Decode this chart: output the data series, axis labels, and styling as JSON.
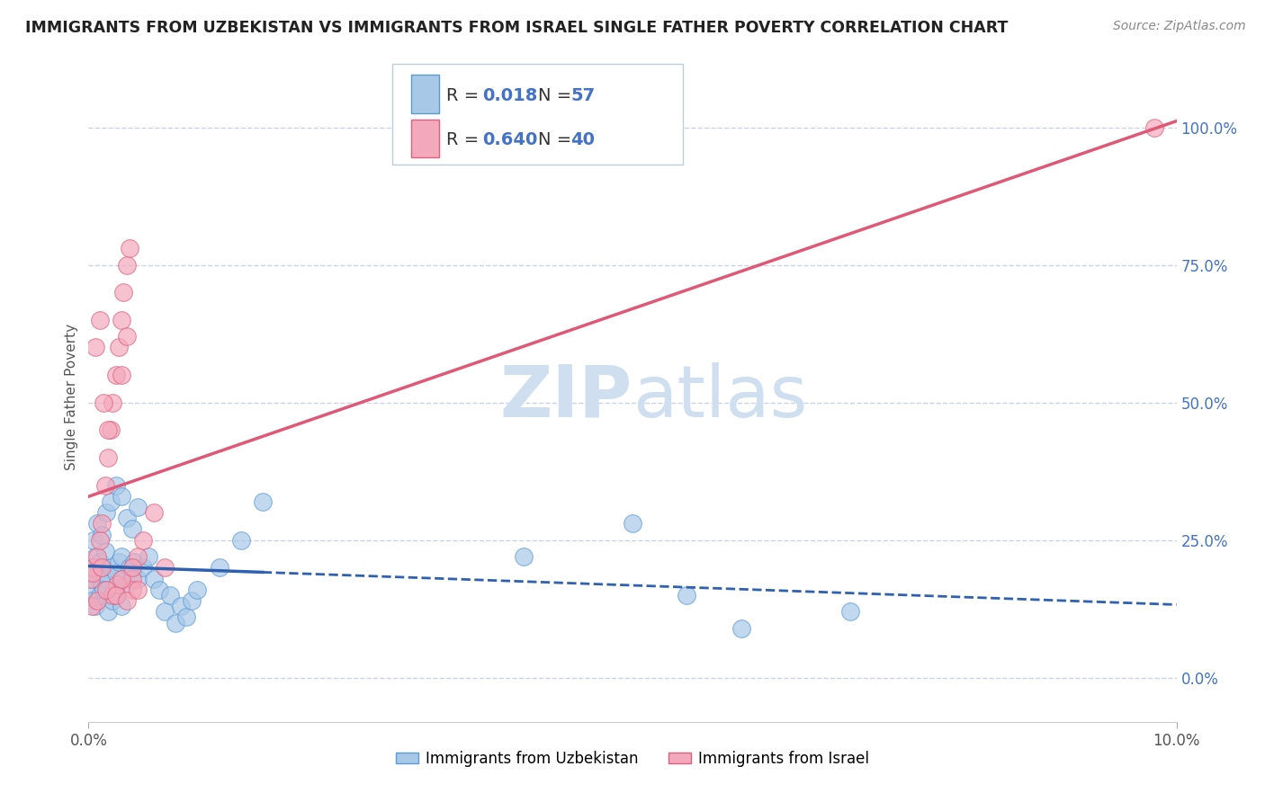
{
  "title": "IMMIGRANTS FROM UZBEKISTAN VS IMMIGRANTS FROM ISRAEL SINGLE FATHER POVERTY CORRELATION CHART",
  "source": "Source: ZipAtlas.com",
  "ylabel": "Single Father Poverty",
  "legend_label1": "Immigrants from Uzbekistan",
  "legend_label2": "Immigrants from Israel",
  "R1": 0.018,
  "N1": 57,
  "R2": 0.64,
  "N2": 40,
  "color1": "#a8c8e8",
  "color2": "#f4a8bc",
  "color1_edge": "#5b9bd5",
  "color2_edge": "#e06080",
  "regression_color1": "#3060b0",
  "regression_color2": "#e05878",
  "background_color": "#ffffff",
  "grid_color": "#c8d4e4",
  "watermark_color": "#d0dff0",
  "xlim": [
    0.0,
    0.1
  ],
  "ylim": [
    -0.08,
    1.1
  ],
  "uzbekistan_x": [
    0.0002,
    0.0003,
    0.0005,
    0.0006,
    0.0008,
    0.001,
    0.0012,
    0.0015,
    0.0018,
    0.002,
    0.0022,
    0.0025,
    0.0028,
    0.003,
    0.0032,
    0.0035,
    0.0038,
    0.004,
    0.0042,
    0.0045,
    0.0003,
    0.0006,
    0.001,
    0.0014,
    0.0018,
    0.0022,
    0.0026,
    0.003,
    0.0005,
    0.0008,
    0.0012,
    0.0016,
    0.002,
    0.0025,
    0.003,
    0.0035,
    0.004,
    0.0045,
    0.005,
    0.0055,
    0.006,
    0.0065,
    0.007,
    0.0075,
    0.008,
    0.0085,
    0.009,
    0.0095,
    0.01,
    0.012,
    0.014,
    0.016,
    0.04,
    0.05,
    0.055,
    0.06,
    0.07
  ],
  "uzbekistan_y": [
    0.18,
    0.16,
    0.2,
    0.22,
    0.19,
    0.21,
    0.17,
    0.23,
    0.18,
    0.2,
    0.16,
    0.19,
    0.21,
    0.22,
    0.18,
    0.17,
    0.2,
    0.19,
    0.21,
    0.18,
    0.14,
    0.13,
    0.15,
    0.16,
    0.12,
    0.14,
    0.15,
    0.13,
    0.25,
    0.28,
    0.26,
    0.3,
    0.32,
    0.35,
    0.33,
    0.29,
    0.27,
    0.31,
    0.2,
    0.22,
    0.18,
    0.16,
    0.12,
    0.15,
    0.1,
    0.13,
    0.11,
    0.14,
    0.16,
    0.2,
    0.25,
    0.32,
    0.22,
    0.28,
    0.15,
    0.09,
    0.12
  ],
  "israel_x": [
    0.0002,
    0.0005,
    0.0008,
    0.001,
    0.0012,
    0.0015,
    0.0018,
    0.002,
    0.0022,
    0.0025,
    0.0028,
    0.003,
    0.0032,
    0.0035,
    0.0038,
    0.004,
    0.0045,
    0.005,
    0.006,
    0.007,
    0.0003,
    0.0006,
    0.001,
    0.0014,
    0.0018,
    0.0022,
    0.0026,
    0.003,
    0.0035,
    0.004,
    0.0004,
    0.0008,
    0.0012,
    0.0016,
    0.0025,
    0.003,
    0.0035,
    0.004,
    0.0045,
    0.098
  ],
  "israel_y": [
    0.18,
    0.2,
    0.22,
    0.25,
    0.28,
    0.35,
    0.4,
    0.45,
    0.5,
    0.55,
    0.6,
    0.65,
    0.7,
    0.75,
    0.78,
    0.18,
    0.22,
    0.25,
    0.3,
    0.2,
    0.13,
    0.6,
    0.65,
    0.5,
    0.45,
    0.15,
    0.17,
    0.55,
    0.62,
    0.16,
    0.19,
    0.14,
    0.2,
    0.16,
    0.15,
    0.18,
    0.14,
    0.2,
    0.16,
    1.0
  ]
}
